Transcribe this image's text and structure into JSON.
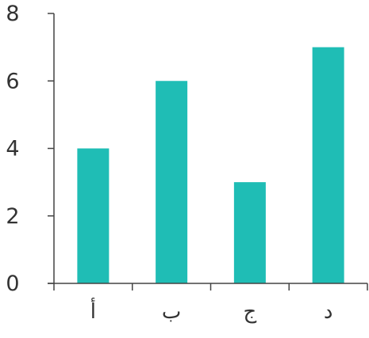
{
  "chart_data": {
    "type": "bar",
    "categories": [
      "أ",
      "ب",
      "ج",
      "د"
    ],
    "values": [
      4,
      6,
      3,
      7
    ],
    "title": "",
    "xlabel": "",
    "ylabel": "",
    "ylim": [
      0,
      8
    ],
    "yticks": [
      0,
      2,
      4,
      6,
      8
    ],
    "grid": false,
    "legend": "none",
    "bar_color": "#1fbdb5",
    "axis_color": "#444444",
    "text_color": "#333333"
  }
}
